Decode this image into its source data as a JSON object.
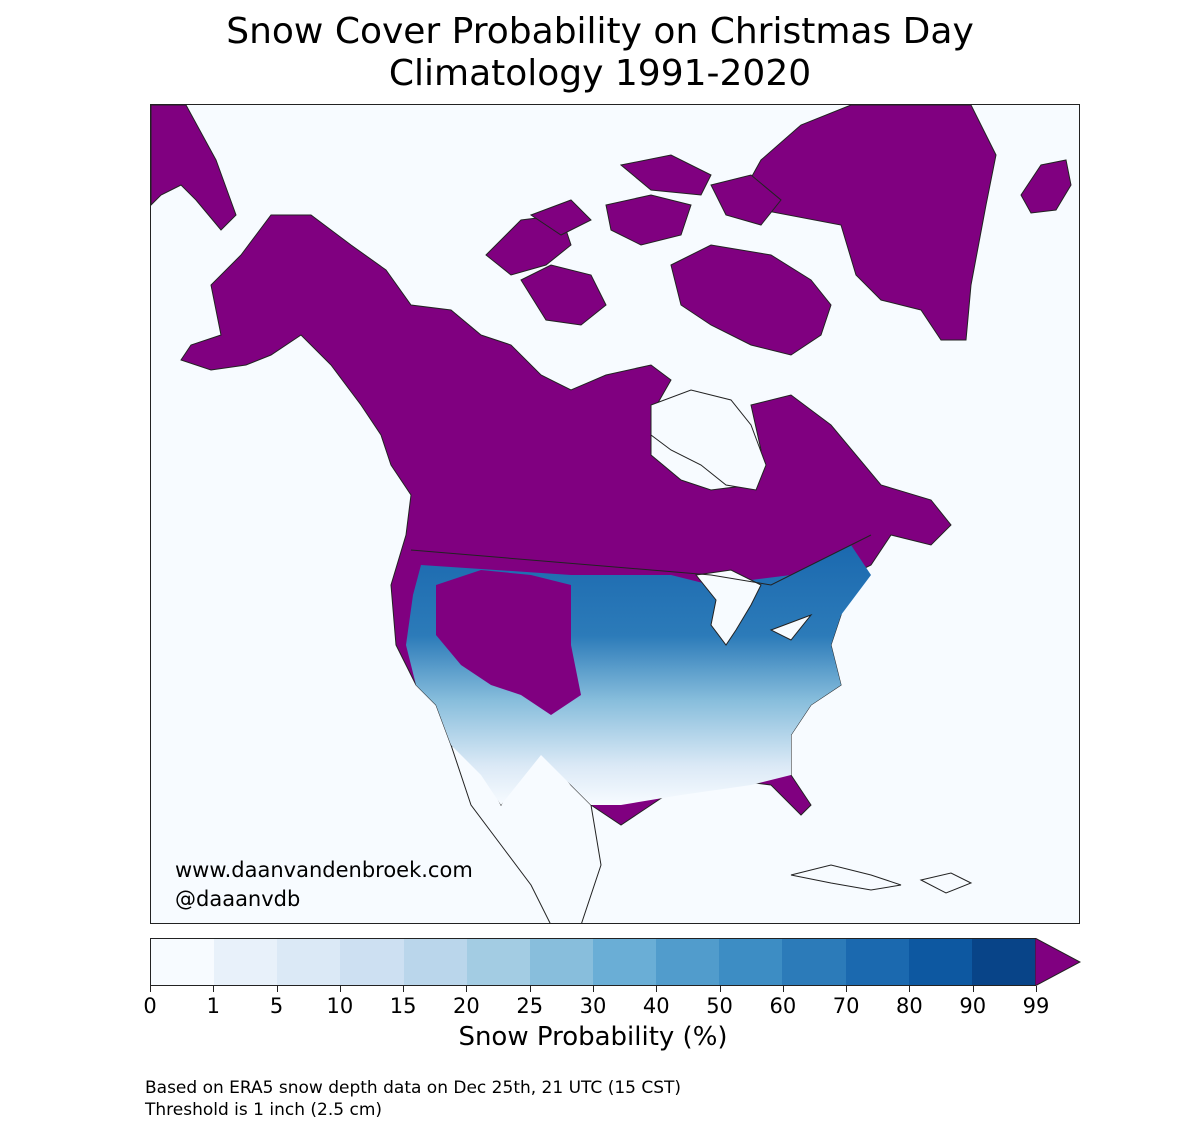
{
  "title": {
    "line1": "Snow Cover Probability on Christmas Day",
    "line2": "Climatology 1991-2020"
  },
  "map": {
    "region": "North America",
    "credit_url": "www.daanvandenbroek.com",
    "credit_handle": "@daaanvdb",
    "colors": {
      "background": "#f7fbff",
      "over_99": "#800080",
      "land_outline": "#000000",
      "border_lines": "#444444"
    }
  },
  "colorbar": {
    "label": "Snow Probability (%)",
    "ticks": [
      "0",
      "1",
      "5",
      "10",
      "15",
      "20",
      "25",
      "30",
      "40",
      "50",
      "60",
      "70",
      "80",
      "90",
      "99"
    ],
    "bins": [
      {
        "from": 0,
        "to": 1,
        "color": "#f7fbff"
      },
      {
        "from": 1,
        "to": 5,
        "color": "#e8f1fa"
      },
      {
        "from": 5,
        "to": 10,
        "color": "#dbe9f6"
      },
      {
        "from": 10,
        "to": 15,
        "color": "#cde0f2"
      },
      {
        "from": 15,
        "to": 20,
        "color": "#bad6eb"
      },
      {
        "from": 20,
        "to": 25,
        "color": "#a3cce3"
      },
      {
        "from": 25,
        "to": 30,
        "color": "#88bedc"
      },
      {
        "from": 30,
        "to": 40,
        "color": "#6aaed6"
      },
      {
        "from": 40,
        "to": 50,
        "color": "#519ccc"
      },
      {
        "from": 50,
        "to": 60,
        "color": "#3d8dc4"
      },
      {
        "from": 60,
        "to": 70,
        "color": "#2c7bb9"
      },
      {
        "from": 70,
        "to": 80,
        "color": "#1b69af"
      },
      {
        "from": 80,
        "to": 90,
        "color": "#0d58a1"
      },
      {
        "from": 90,
        "to": 99,
        "color": "#084488"
      }
    ],
    "extend_color": "#800080"
  },
  "footnote": {
    "line1": "Based on ERA5 snow depth data on Dec 25th, 21 UTC (15 CST)",
    "line2": "Threshold is 1 inch (2.5 cm)"
  },
  "chart_data": {
    "type": "heatmap",
    "title": "Snow Cover Probability on Christmas Day — Climatology 1991-2020",
    "colorbar_label": "Snow Probability (%)",
    "levels": [
      0,
      1,
      5,
      10,
      15,
      20,
      25,
      30,
      40,
      50,
      60,
      70,
      80,
      90,
      99
    ],
    "extend": "max (>99% shown in purple)",
    "annotations": [
      "www.daanvandenbroek.com",
      "@daaanvdb",
      "Based on ERA5 snow depth data on Dec 25th, 21 UTC (15 CST)",
      "Threshold is 1 inch (2.5 cm)"
    ],
    "regions_summary": [
      {
        "region": "Alaska, northern Canada, Greenland, Arctic islands",
        "probability": ">99"
      },
      {
        "region": "Rocky Mountains (MT, WY, ID, CO high terrain)",
        "probability": ">99"
      },
      {
        "region": "Northern Plains / Upper Midwest / Great Lakes / New England",
        "probability": "70-99"
      },
      {
        "region": "Central Plains / Ohio Valley",
        "probability": "20-60"
      },
      {
        "region": "Southern US / Mexico",
        "probability": "0-10"
      }
    ]
  }
}
